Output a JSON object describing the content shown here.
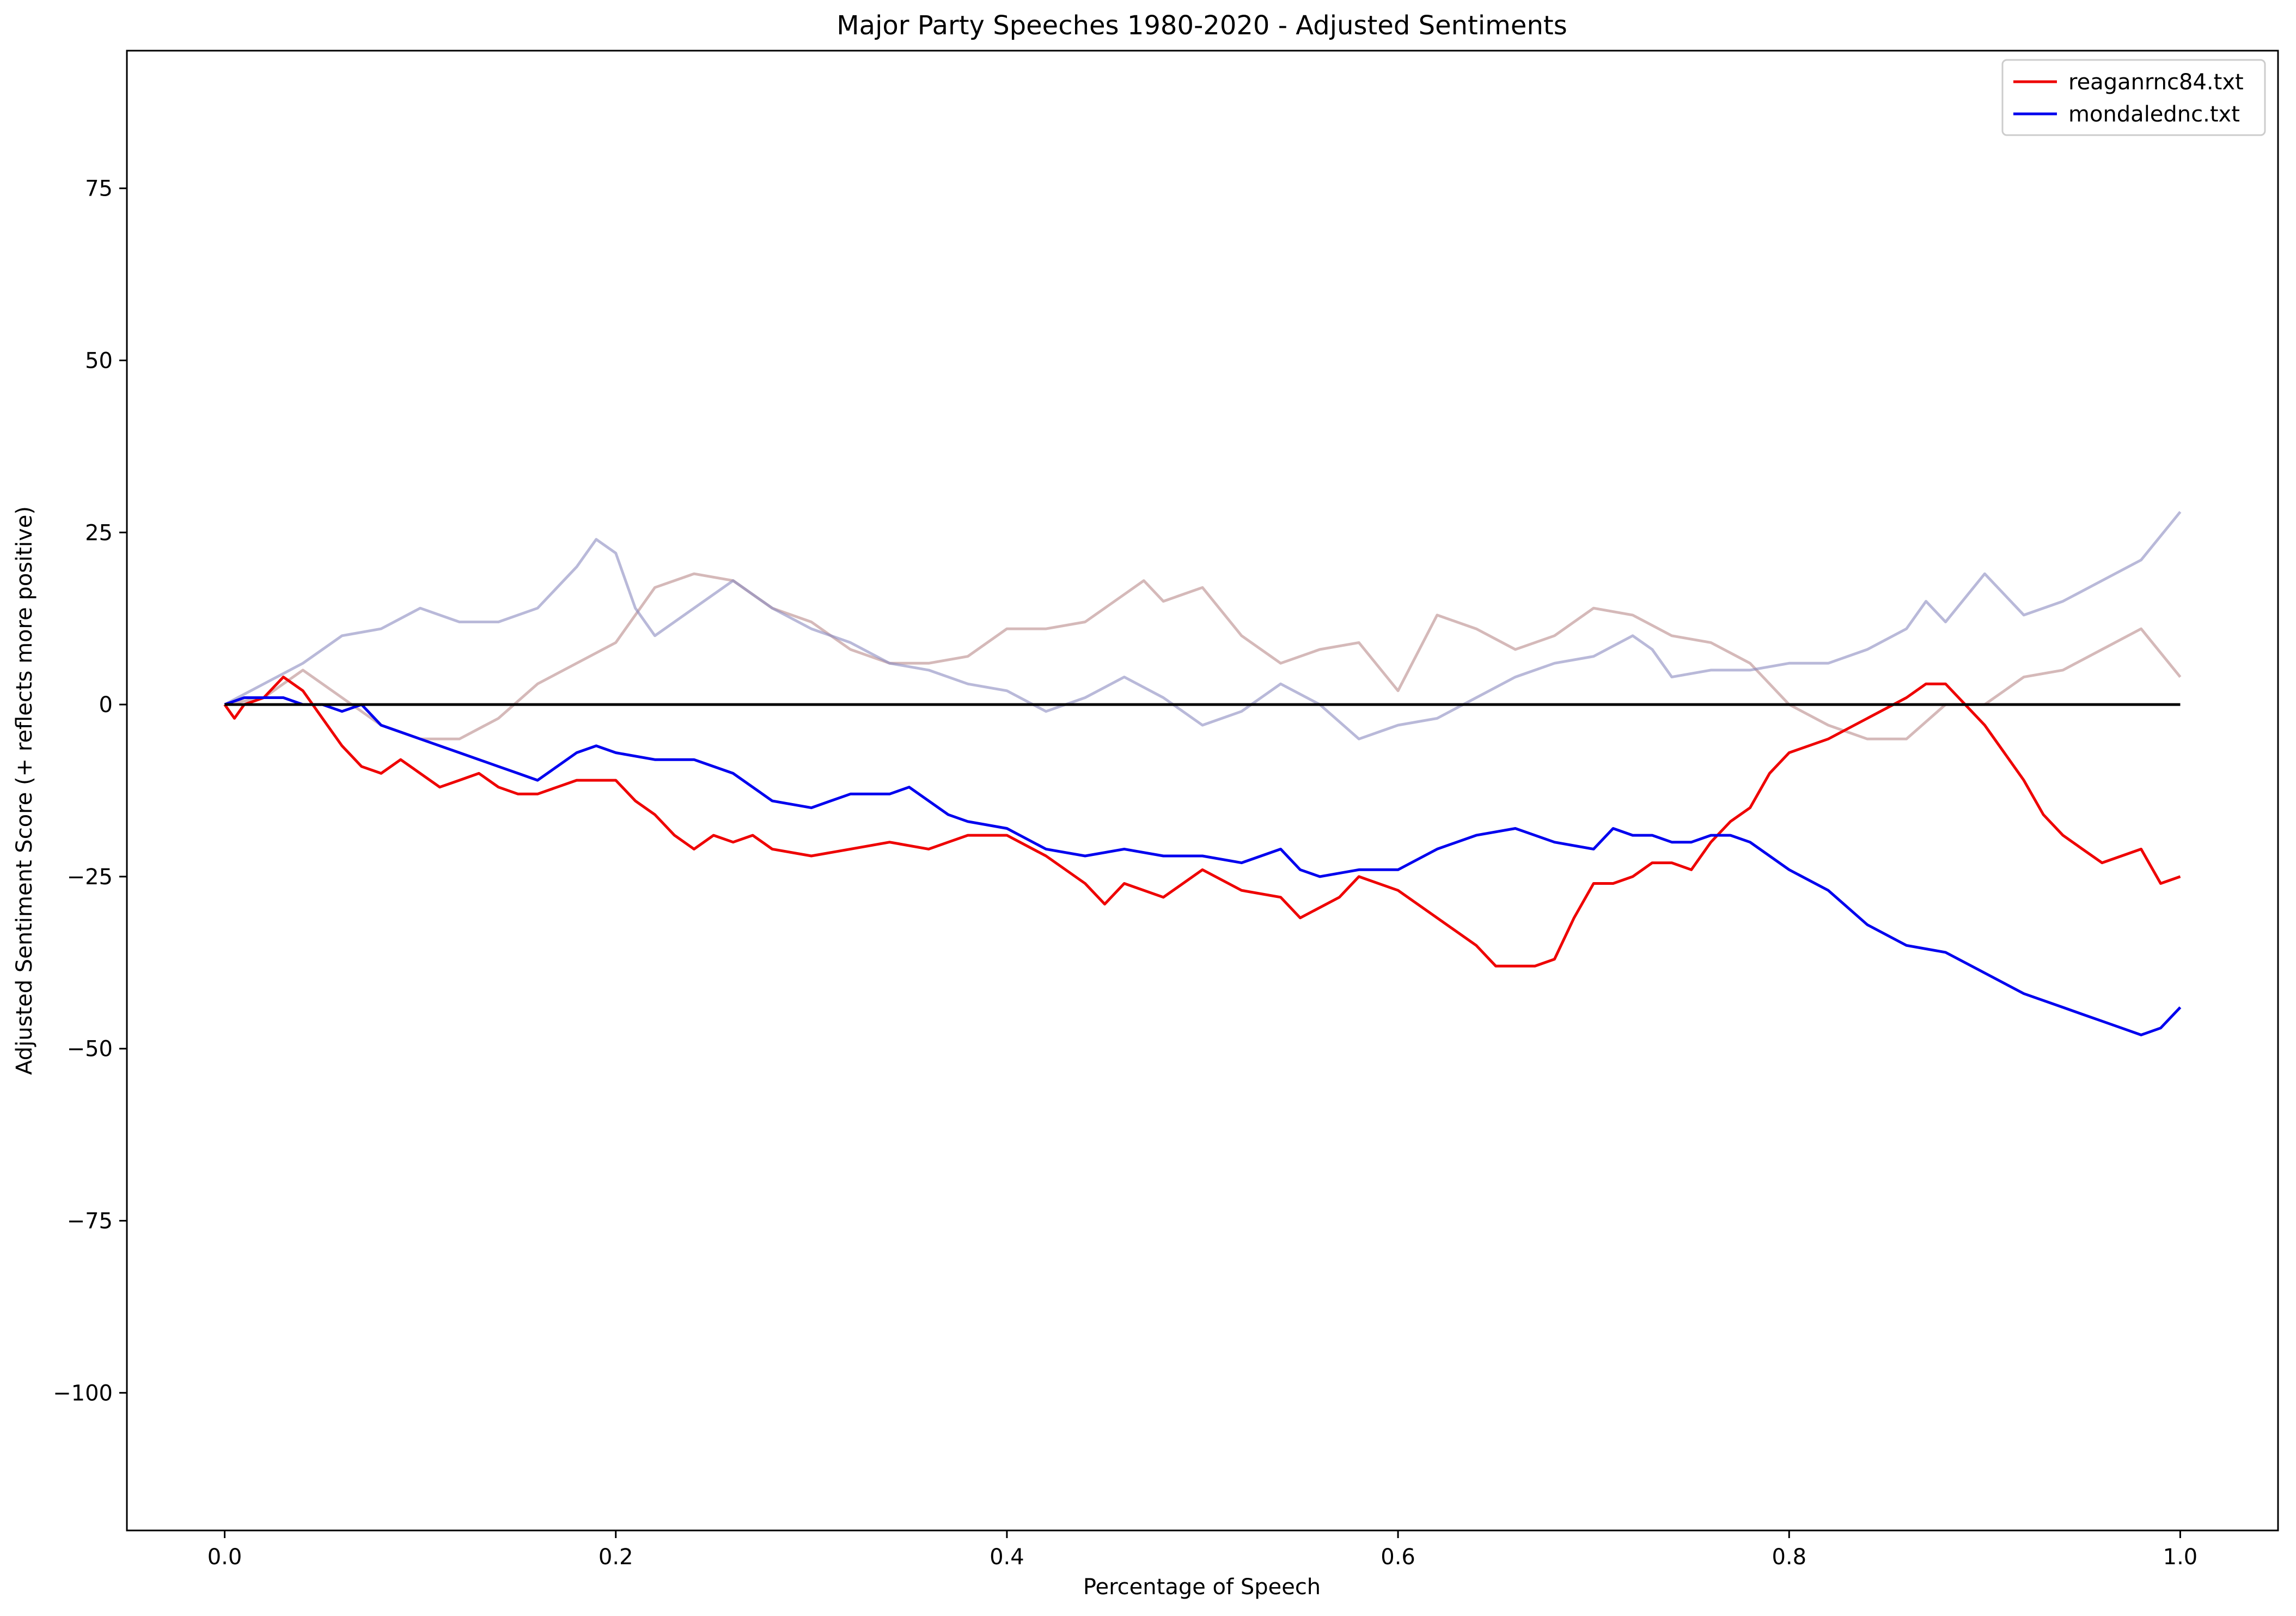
{
  "chart_data": {
    "type": "line",
    "title": "Major Party Speeches 1980-2020 - Adjusted Sentiments",
    "xlabel": "Percentage of Speech",
    "ylabel": "Adjusted Sentiment Score (+ reflects more positive)",
    "xlim": [
      -0.05,
      1.05
    ],
    "ylim": [
      -120,
      95
    ],
    "xticks": [
      0.0,
      0.2,
      0.4,
      0.6,
      0.8,
      1.0
    ],
    "xtick_labels": [
      "0.0",
      "0.2",
      "0.4",
      "0.6",
      "0.8",
      "1.0"
    ],
    "yticks": [
      -100,
      -75,
      -50,
      -25,
      0,
      25,
      50,
      75
    ],
    "ytick_labels": [
      "−100",
      "−75",
      "−50",
      "−25",
      "0",
      "25",
      "50",
      "75"
    ],
    "grid": false,
    "legend_position": "top-right",
    "series": [
      {
        "name": "reaganrnc84.txt",
        "color": "#ee0000",
        "opacity": 1,
        "x": [
          0,
          0.005,
          0.01,
          0.02,
          0.03,
          0.04,
          0.05,
          0.06,
          0.07,
          0.08,
          0.09,
          0.1,
          0.11,
          0.12,
          0.13,
          0.14,
          0.15,
          0.16,
          0.17,
          0.18,
          0.2,
          0.21,
          0.22,
          0.23,
          0.24,
          0.25,
          0.26,
          0.27,
          0.28,
          0.3,
          0.32,
          0.34,
          0.36,
          0.37,
          0.38,
          0.4,
          0.42,
          0.44,
          0.45,
          0.46,
          0.48,
          0.5,
          0.52,
          0.54,
          0.55,
          0.57,
          0.58,
          0.6,
          0.62,
          0.64,
          0.65,
          0.67,
          0.68,
          0.69,
          0.7,
          0.71,
          0.72,
          0.73,
          0.74,
          0.75,
          0.76,
          0.77,
          0.78,
          0.79,
          0.8,
          0.82,
          0.84,
          0.86,
          0.87,
          0.88,
          0.89,
          0.9,
          0.91,
          0.92,
          0.93,
          0.94,
          0.95,
          0.96,
          0.97,
          0.98,
          0.99,
          1.0
        ],
        "y": [
          0,
          -2,
          0,
          1,
          4,
          2,
          -2,
          -6,
          -9,
          -10,
          -8,
          -10,
          -12,
          -11,
          -10,
          -12,
          -13,
          -13,
          -12,
          -11,
          -11,
          -14,
          -16,
          -19,
          -21,
          -19,
          -20,
          -19,
          -21,
          -22,
          -21,
          -20,
          -21,
          -20,
          -19,
          -19,
          -22,
          -26,
          -29,
          -26,
          -28,
          -24,
          -27,
          -28,
          -31,
          -28,
          -25,
          -27,
          -31,
          -35,
          -38,
          -38,
          -37,
          -31,
          -26,
          -26,
          -25,
          -23,
          -23,
          -24,
          -20,
          -17,
          -15,
          -10,
          -7,
          -5,
          -2,
          1,
          3,
          3,
          0,
          -3,
          -7,
          -11,
          -16,
          -19,
          -21,
          -23,
          -22,
          -21,
          -26,
          -25
        ]
      },
      {
        "name": "mondalednc.txt",
        "color": "#0000ee",
        "opacity": 1,
        "x": [
          0,
          0.01,
          0.02,
          0.03,
          0.04,
          0.05,
          0.06,
          0.07,
          0.08,
          0.09,
          0.1,
          0.12,
          0.14,
          0.15,
          0.16,
          0.17,
          0.18,
          0.19,
          0.2,
          0.22,
          0.24,
          0.26,
          0.27,
          0.28,
          0.3,
          0.31,
          0.32,
          0.34,
          0.35,
          0.36,
          0.37,
          0.38,
          0.4,
          0.42,
          0.44,
          0.46,
          0.48,
          0.5,
          0.52,
          0.54,
          0.55,
          0.56,
          0.58,
          0.6,
          0.62,
          0.64,
          0.66,
          0.68,
          0.7,
          0.71,
          0.72,
          0.73,
          0.74,
          0.75,
          0.76,
          0.77,
          0.78,
          0.8,
          0.82,
          0.84,
          0.86,
          0.88,
          0.9,
          0.92,
          0.94,
          0.95,
          0.96,
          0.97,
          0.98,
          0.99,
          1.0
        ],
        "y": [
          0,
          1,
          1,
          1,
          0,
          0,
          -1,
          0,
          -3,
          -4,
          -5,
          -7,
          -9,
          -10,
          -11,
          -9,
          -7,
          -6,
          -7,
          -8,
          -8,
          -10,
          -12,
          -14,
          -15,
          -14,
          -13,
          -13,
          -12,
          -14,
          -16,
          -17,
          -18,
          -21,
          -22,
          -21,
          -22,
          -22,
          -23,
          -21,
          -24,
          -25,
          -24,
          -24,
          -21,
          -19,
          -18,
          -20,
          -21,
          -18,
          -19,
          -19,
          -20,
          -20,
          -19,
          -19,
          -20,
          -24,
          -27,
          -32,
          -35,
          -36,
          -39,
          -42,
          -44,
          -45,
          -46,
          -47,
          -48,
          -47,
          -44
        ]
      },
      {
        "name": "",
        "color": "#b98a8a",
        "opacity": 0.6,
        "x": [
          0,
          0.02,
          0.04,
          0.06,
          0.08,
          0.1,
          0.12,
          0.14,
          0.16,
          0.18,
          0.2,
          0.22,
          0.24,
          0.26,
          0.28,
          0.3,
          0.32,
          0.34,
          0.36,
          0.38,
          0.4,
          0.42,
          0.44,
          0.46,
          0.47,
          0.48,
          0.5,
          0.52,
          0.54,
          0.56,
          0.58,
          0.6,
          0.62,
          0.64,
          0.66,
          0.68,
          0.7,
          0.72,
          0.74,
          0.76,
          0.78,
          0.8,
          0.82,
          0.84,
          0.86,
          0.88,
          0.9,
          0.92,
          0.94,
          0.96,
          0.98,
          1.0
        ],
        "y": [
          0,
          1,
          5,
          1,
          -3,
          -5,
          -5,
          -2,
          3,
          6,
          9,
          17,
          19,
          18,
          14,
          12,
          8,
          6,
          6,
          7,
          11,
          11,
          12,
          16,
          18,
          15,
          17,
          10,
          6,
          8,
          9,
          2,
          13,
          11,
          8,
          10,
          14,
          13,
          10,
          9,
          6,
          0,
          -3,
          -5,
          -5,
          0,
          0,
          4,
          5,
          8,
          11,
          4
        ]
      },
      {
        "name": "",
        "color": "#8a8ac0",
        "opacity": 0.6,
        "x": [
          0,
          0.02,
          0.04,
          0.06,
          0.08,
          0.1,
          0.12,
          0.14,
          0.16,
          0.18,
          0.19,
          0.2,
          0.21,
          0.22,
          0.24,
          0.26,
          0.28,
          0.3,
          0.32,
          0.34,
          0.36,
          0.38,
          0.4,
          0.42,
          0.44,
          0.46,
          0.48,
          0.5,
          0.52,
          0.54,
          0.56,
          0.58,
          0.6,
          0.62,
          0.64,
          0.66,
          0.68,
          0.7,
          0.72,
          0.73,
          0.74,
          0.76,
          0.78,
          0.8,
          0.82,
          0.84,
          0.86,
          0.87,
          0.88,
          0.9,
          0.92,
          0.94,
          0.96,
          0.98,
          1.0
        ],
        "y": [
          0,
          3,
          6,
          10,
          11,
          14,
          12,
          12,
          14,
          20,
          24,
          22,
          14,
          10,
          14,
          18,
          14,
          11,
          9,
          6,
          5,
          3,
          2,
          -1,
          1,
          4,
          1,
          -3,
          -1,
          3,
          0,
          -5,
          -3,
          -2,
          1,
          4,
          6,
          7,
          10,
          8,
          4,
          5,
          5,
          6,
          6,
          8,
          11,
          15,
          12,
          19,
          13,
          15,
          18,
          21,
          28
        ]
      }
    ],
    "reference_line": {
      "y": 0,
      "x_range": [
        0,
        1
      ],
      "color": "#000000"
    }
  }
}
